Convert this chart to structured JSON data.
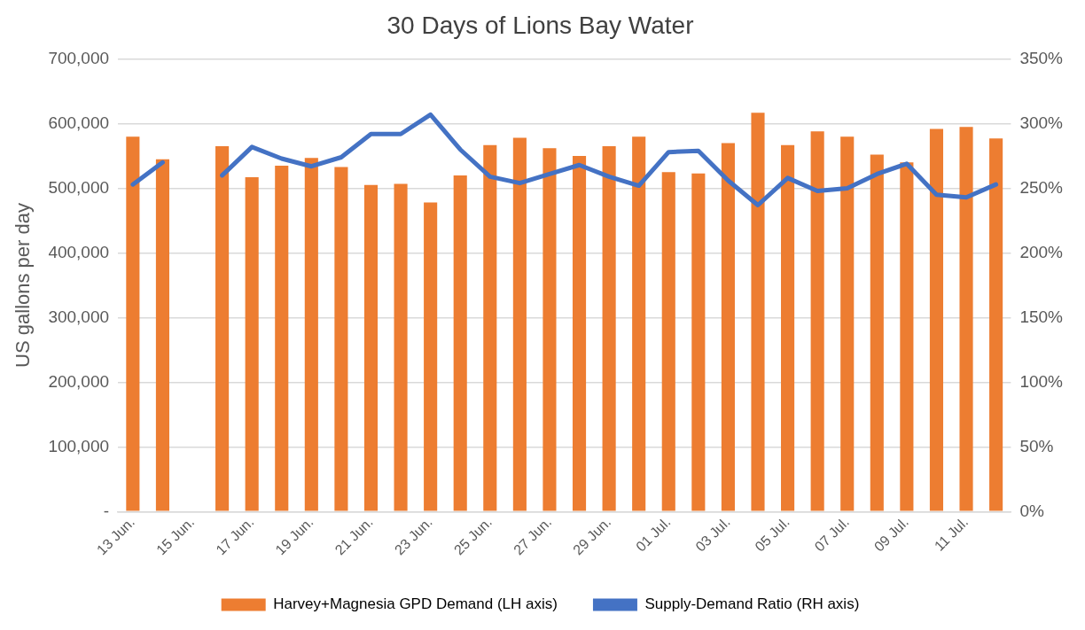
{
  "chart_data": {
    "type": "bar",
    "title": "30 Days of Lions Bay Water",
    "ylabel": "US gallons per day",
    "categories": [
      "13 Jun.",
      null,
      "15 Jun.",
      null,
      "17 Jun.",
      null,
      "19 Jun.",
      null,
      "21 Jun.",
      null,
      "23 Jun.",
      null,
      "25 Jun.",
      null,
      "27 Jun.",
      null,
      "29 Jun.",
      null,
      "01 Jul.",
      null,
      "03 Jul.",
      null,
      "05 Jul.",
      null,
      "07 Jul.",
      null,
      "09 Jul.",
      null,
      "11 Jul.",
      null
    ],
    "series": [
      {
        "name": "Harvey+Magnesia GPD Demand (LH axis)",
        "color": "#ed7d31",
        "values": [
          580000,
          545000,
          null,
          565000,
          517000,
          535000,
          547000,
          533000,
          505000,
          507000,
          478000,
          520000,
          567000,
          578000,
          562000,
          550000,
          565000,
          580000,
          525000,
          523000,
          570000,
          617000,
          567000,
          588000,
          580000,
          552000,
          540000,
          592000,
          595000,
          577000
        ]
      },
      {
        "name": "Supply-Demand Ratio (RH axis)",
        "type": "line",
        "axis": "y2",
        "color": "#4472c4",
        "values": [
          253,
          270,
          null,
          260,
          282,
          273,
          267,
          274,
          292,
          292,
          307,
          280,
          259,
          254,
          261,
          268,
          259,
          252,
          278,
          279,
          256,
          237,
          258,
          248,
          250,
          261,
          269,
          245,
          243,
          253
        ]
      }
    ],
    "ylim": [
      0,
      700000
    ],
    "yticks": [
      {
        "value": 0,
        "label": "-"
      },
      {
        "value": 100000,
        "label": "100,000"
      },
      {
        "value": 200000,
        "label": "200,000"
      },
      {
        "value": 300000,
        "label": "300,000"
      },
      {
        "value": 400000,
        "label": "400,000"
      },
      {
        "value": 500000,
        "label": "500,000"
      },
      {
        "value": 600000,
        "label": "600,000"
      },
      {
        "value": 700000,
        "label": "700,000"
      }
    ],
    "y2lim": [
      0,
      350
    ],
    "y2ticks": [
      {
        "value": 0,
        "label": "0%"
      },
      {
        "value": 50,
        "label": "50%"
      },
      {
        "value": 100,
        "label": "100%"
      },
      {
        "value": 150,
        "label": "150%"
      },
      {
        "value": 200,
        "label": "200%"
      },
      {
        "value": 250,
        "label": "250%"
      },
      {
        "value": 300,
        "label": "300%"
      },
      {
        "value": 350,
        "label": "350%"
      }
    ],
    "grid": "y",
    "legend": "bottom",
    "marker": "none",
    "line_style": "solid"
  }
}
